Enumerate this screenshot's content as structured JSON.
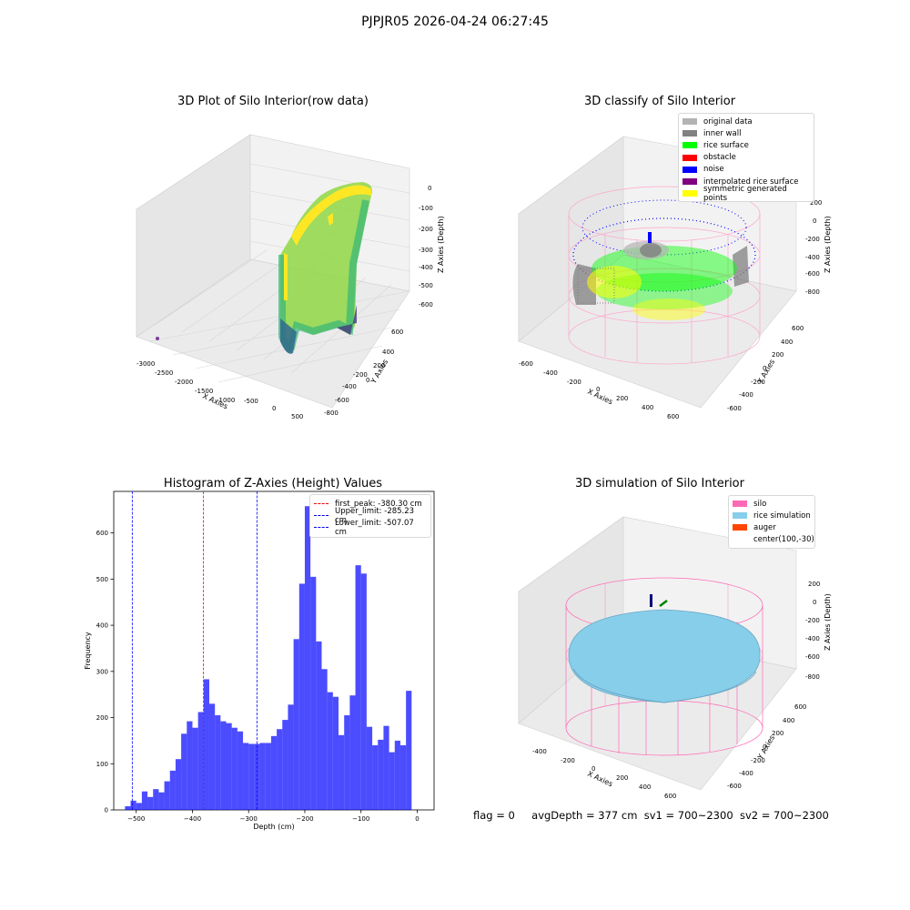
{
  "figure": {
    "title": "PJPJR05 2026-04-24 06:27:45",
    "footer": {
      "flag": "flag = 0",
      "avg_depth": "avgDepth = 377 cm",
      "sv1": "sv1 = 700~2300",
      "sv2": "sv2 = 700~2300"
    }
  },
  "chart_data": [
    {
      "type": "scatter",
      "projection": "3d",
      "title": "3D Plot of Silo Interior(row data)",
      "xlabel": "X Axies",
      "ylabel": "Y Axies",
      "zlabel": "Z Axies (Depth)",
      "x_ticks": [
        "-3000",
        "-2500",
        "-2000",
        "-1500",
        "-1000",
        "-500",
        "0",
        "500"
      ],
      "y_ticks": [
        "600",
        "400",
        "200",
        "0",
        "-200",
        "-400",
        "-600",
        "-800"
      ],
      "z_ticks": [
        "0",
        "-100",
        "-200",
        "-300",
        "-400",
        "-500",
        "-600"
      ],
      "xlim": [
        -3100,
        600
      ],
      "ylim": [
        -800,
        700
      ],
      "zlim": [
        -650,
        20
      ],
      "colormap": "viridis",
      "description_points": "dense ring of points around x 0..500, outlier near x -3000"
    },
    {
      "type": "scatter",
      "projection": "3d",
      "title": "3D classify of Silo Interior",
      "xlabel": "X Axies",
      "ylabel": "Y Axies",
      "zlabel": "Z Axies (Depth)",
      "x_ticks": [
        "-600",
        "-400",
        "-200",
        "0",
        "200",
        "400",
        "600"
      ],
      "y_ticks": [
        "600",
        "400",
        "200",
        "0",
        "-200",
        "-400",
        "-600"
      ],
      "z_ticks": [
        "200",
        "0",
        "-200",
        "-400",
        "-600",
        "-800"
      ],
      "legend": [
        {
          "label": "original data",
          "color": "#b3b3b3"
        },
        {
          "label": "inner wall",
          "color": "#808080"
        },
        {
          "label": "rice surface",
          "color": "#00ff00"
        },
        {
          "label": "obstacle",
          "color": "#ff0000"
        },
        {
          "label": "noise",
          "color": "#0000ff"
        },
        {
          "label": "interpolated rice surface",
          "color": "#800080"
        },
        {
          "label": "symmetric generated points",
          "color": "#ffff00"
        }
      ]
    },
    {
      "type": "bar",
      "title": "Histogram of Z-Axies (Height) Values",
      "xlabel": "Depth (cm)",
      "ylabel": "Frequency",
      "xlim": [
        -540,
        30
      ],
      "ylim": [
        0,
        690
      ],
      "x_ticks": [
        -500,
        -400,
        -300,
        -200,
        -100,
        0
      ],
      "y_ticks": [
        0,
        100,
        200,
        300,
        400,
        500,
        600
      ],
      "bin_width": 10,
      "bin_starts": [
        -520,
        -510,
        -500,
        -490,
        -480,
        -470,
        -460,
        -450,
        -440,
        -430,
        -420,
        -410,
        -400,
        -390,
        -380,
        -370,
        -360,
        -350,
        -340,
        -330,
        -320,
        -310,
        -300,
        -290,
        -280,
        -270,
        -260,
        -250,
        -240,
        -230,
        -220,
        -210,
        -200,
        -190,
        -180,
        -170,
        -160,
        -150,
        -140,
        -130,
        -120,
        -110,
        -100,
        -90,
        -80,
        -70,
        -60,
        -50,
        -40,
        -30,
        -20,
        -10
      ],
      "values": [
        8,
        20,
        15,
        40,
        28,
        45,
        38,
        62,
        85,
        110,
        165,
        192,
        178,
        212,
        283,
        230,
        205,
        192,
        188,
        178,
        170,
        145,
        143,
        143,
        145,
        145,
        160,
        175,
        195,
        228,
        370,
        490,
        658,
        505,
        365,
        305,
        255,
        245,
        162,
        205,
        248,
        530,
        512,
        180,
        140,
        152,
        182,
        125,
        150,
        140,
        258,
        0
      ],
      "bar_color": "#0000ff",
      "vlines": [
        {
          "label": "first_peak: -380.30 cm",
          "x": -380.3,
          "color": "#ff0000"
        },
        {
          "label": "Upper_limit: -285.23 cm",
          "x": -285.23,
          "color": "#0000ff"
        },
        {
          "label": "Lower_limit: -507.07 cm",
          "x": -507.07,
          "color": "#0000ff"
        }
      ]
    },
    {
      "type": "scatter",
      "projection": "3d",
      "title": "3D simulation of Silo Interior",
      "xlabel": "X Axies",
      "ylabel": "Y Axies",
      "zlabel": "Z Axies (Depth)",
      "x_ticks": [
        "-400",
        "-200",
        "0",
        "200",
        "400",
        "600"
      ],
      "y_ticks": [
        "600",
        "400",
        "200",
        "0",
        "-200",
        "-400",
        "-600"
      ],
      "z_ticks": [
        "200",
        "0",
        "-200",
        "-400",
        "-600",
        "-800"
      ],
      "legend": [
        {
          "label": "silo",
          "color": "#ff69b4"
        },
        {
          "label": "rice simulation",
          "color": "#87ceeb"
        },
        {
          "label": "auger",
          "color": "#ff4500"
        },
        {
          "label": "center(100,-30)",
          "color": ""
        }
      ]
    }
  ]
}
